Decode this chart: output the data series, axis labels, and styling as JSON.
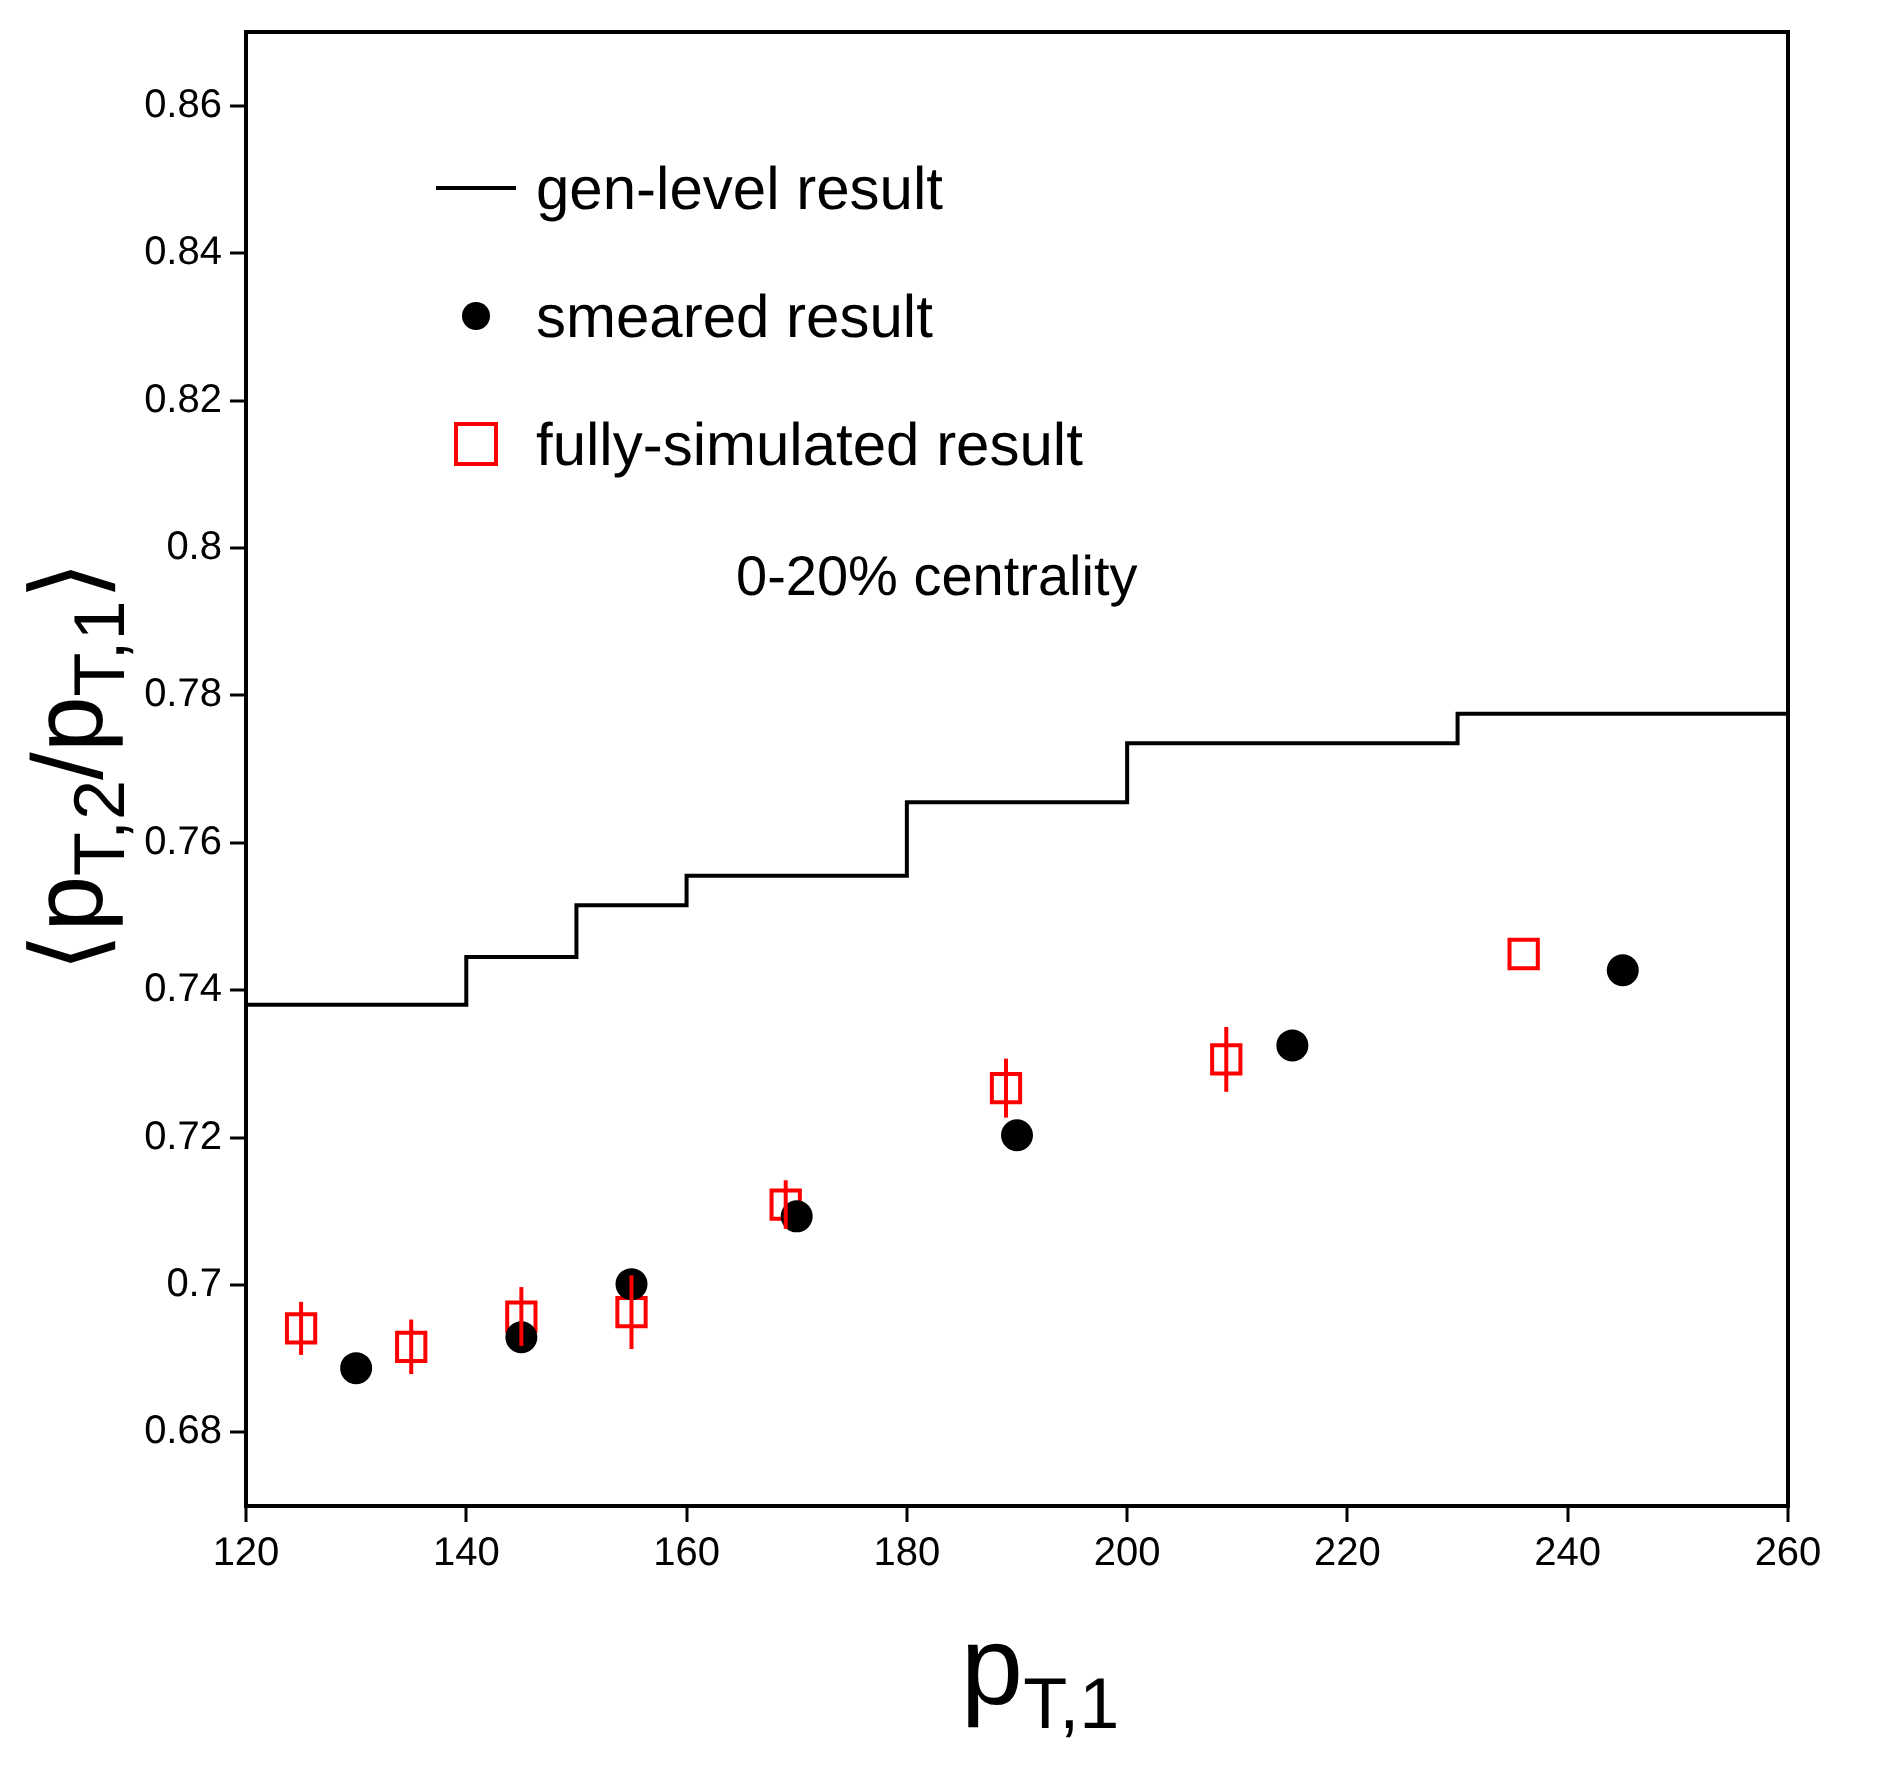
{
  "chart_data": {
    "type": "scatter",
    "xlabel": "p$_{T,1}$",
    "ylabel": "⟨p$_{T,2}$/p$_{T,1}$⟩",
    "xlim": [
      120,
      260
    ],
    "xticks": [
      120,
      140,
      160,
      180,
      200,
      220,
      240,
      260
    ],
    "ylim": [
      0.67,
      0.87
    ],
    "yticks": [
      0.68,
      0.7,
      0.72,
      0.74,
      0.76,
      0.78,
      0.8,
      0.82,
      0.84,
      0.86
    ],
    "grid": false,
    "legend": "top left",
    "annotations": [
      "0-20% centrality"
    ],
    "series": [
      {
        "name": "gen-level result",
        "type": "step",
        "color": "#000000",
        "marker": "none",
        "x": [
          120,
          140,
          150,
          160,
          180,
          200,
          230,
          260
        ],
        "values": [
          0.738,
          0.7445,
          0.7515,
          0.7555,
          0.7655,
          0.7735,
          0.7775,
          0.7775
        ]
      },
      {
        "name": "smeared result",
        "type": "scatter",
        "color": "#000000",
        "marker": "circle",
        "x": [
          130,
          145,
          155,
          170,
          190,
          215,
          245
        ],
        "values": [
          0.6887,
          0.6929,
          0.7001,
          0.7093,
          0.7203,
          0.7325,
          0.7427
        ]
      },
      {
        "name": "fully-simulated result",
        "type": "scatter",
        "color": "#ff0000",
        "marker": "square",
        "x": [
          125,
          135,
          145,
          155,
          169,
          189,
          209,
          236
        ],
        "values": [
          0.6941,
          0.6916,
          0.6957,
          0.6963,
          0.7109,
          0.7267,
          0.7306,
          0.7449
        ],
        "errors": [
          0.0036,
          0.0037,
          0.004,
          0.005,
          0.0033,
          0.004,
          0.0044,
          null
        ]
      }
    ]
  }
}
